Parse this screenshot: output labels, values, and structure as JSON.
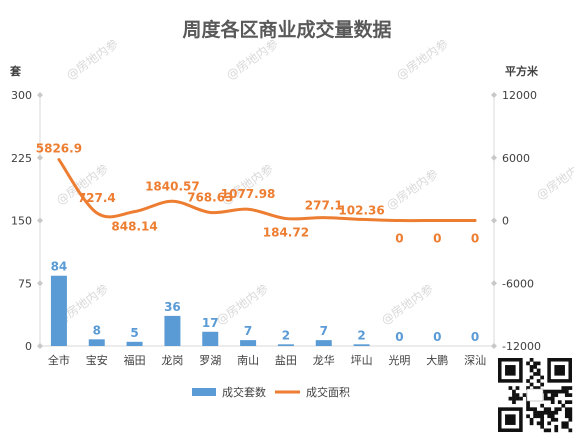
{
  "watermark": "@房地内参",
  "chart_data": {
    "type": "bar",
    "title": "周度各区商业成交量数据",
    "categories": [
      "全市",
      "宝安",
      "福田",
      "龙岗",
      "罗湖",
      "南山",
      "盐田",
      "龙华",
      "坪山",
      "光明",
      "大鹏",
      "深汕"
    ],
    "y_left": {
      "unit": "套",
      "ylim": [
        0,
        300
      ],
      "ticks": [
        0,
        75,
        150,
        225,
        300
      ]
    },
    "y_right": {
      "unit": "平方米",
      "ylim": [
        -12000,
        12000
      ],
      "ticks": [
        -12000,
        -6000,
        0,
        6000,
        12000
      ]
    },
    "series": [
      {
        "name": "成交套数",
        "type": "bar",
        "axis": "left",
        "color": "#5b9bd5",
        "values": [
          84,
          8,
          5,
          36,
          17,
          7,
          2,
          7,
          2,
          0,
          0,
          0
        ],
        "labels": [
          "84",
          "8",
          "5",
          "36",
          "17",
          "7",
          "2",
          "7",
          "2",
          "0",
          "0",
          "0"
        ]
      },
      {
        "name": "成交面积",
        "type": "line",
        "axis": "right",
        "color": "#ed7d31",
        "values": [
          5826.9,
          727.4,
          848.14,
          1840.57,
          768.63,
          1077.98,
          184.72,
          277.1,
          102.36,
          0,
          0,
          0
        ],
        "labels": [
          "5826.9",
          "727.4",
          "848.14",
          "1840.57",
          "768.63",
          "1077.98",
          "184.72",
          "277.1",
          "102.36",
          "0",
          "0",
          "0"
        ]
      }
    ],
    "grid": false,
    "legend_position": "bottom"
  }
}
